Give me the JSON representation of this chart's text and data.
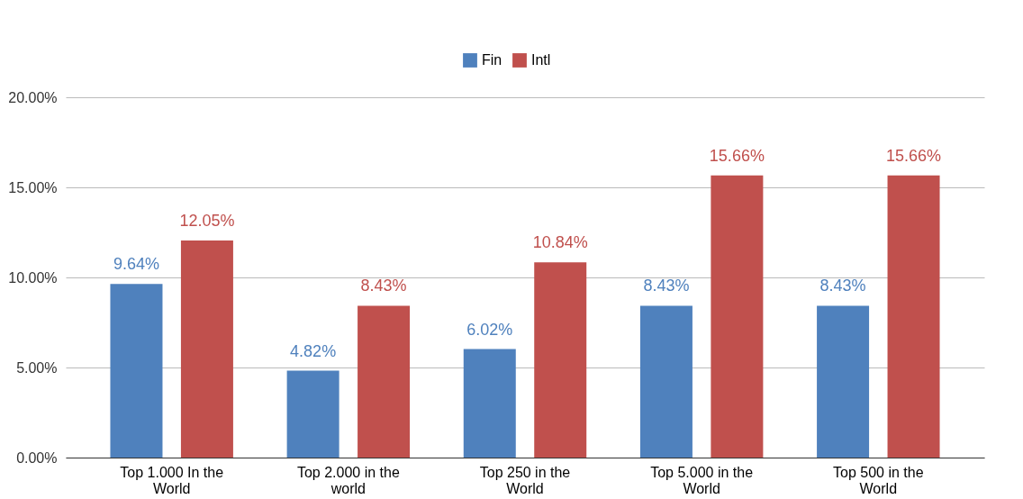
{
  "chart_data": {
    "type": "bar",
    "categories": [
      "Top 1.000 In the World",
      "Top 2.000 in the world",
      "Top 250 in the World",
      "Top 5.000 in the World",
      "Top 500 in the World"
    ],
    "series": [
      {
        "name": "Fin",
        "color": "#4f81bd",
        "values": [
          9.64,
          4.82,
          6.02,
          8.43,
          8.43
        ],
        "value_labels": [
          "9.64%",
          "4.82%",
          "6.02%",
          "8.43%",
          "8.43%"
        ]
      },
      {
        "name": "Intl",
        "color": "#c0504d",
        "values": [
          12.05,
          8.43,
          10.84,
          15.66,
          15.66
        ],
        "value_labels": [
          "12.05%",
          "8.43%",
          "10.84%",
          "15.66%",
          "15.66%"
        ]
      }
    ],
    "ylim": [
      0,
      20
    ],
    "yticks": [
      {
        "value": 0,
        "label": "0.00%"
      },
      {
        "value": 5,
        "label": "5.00%"
      },
      {
        "value": 10,
        "label": "10.00%"
      },
      {
        "value": 15,
        "label": "15.00%"
      },
      {
        "value": 20,
        "label": "20.00%"
      }
    ],
    "grid": "y",
    "legend": "top"
  }
}
